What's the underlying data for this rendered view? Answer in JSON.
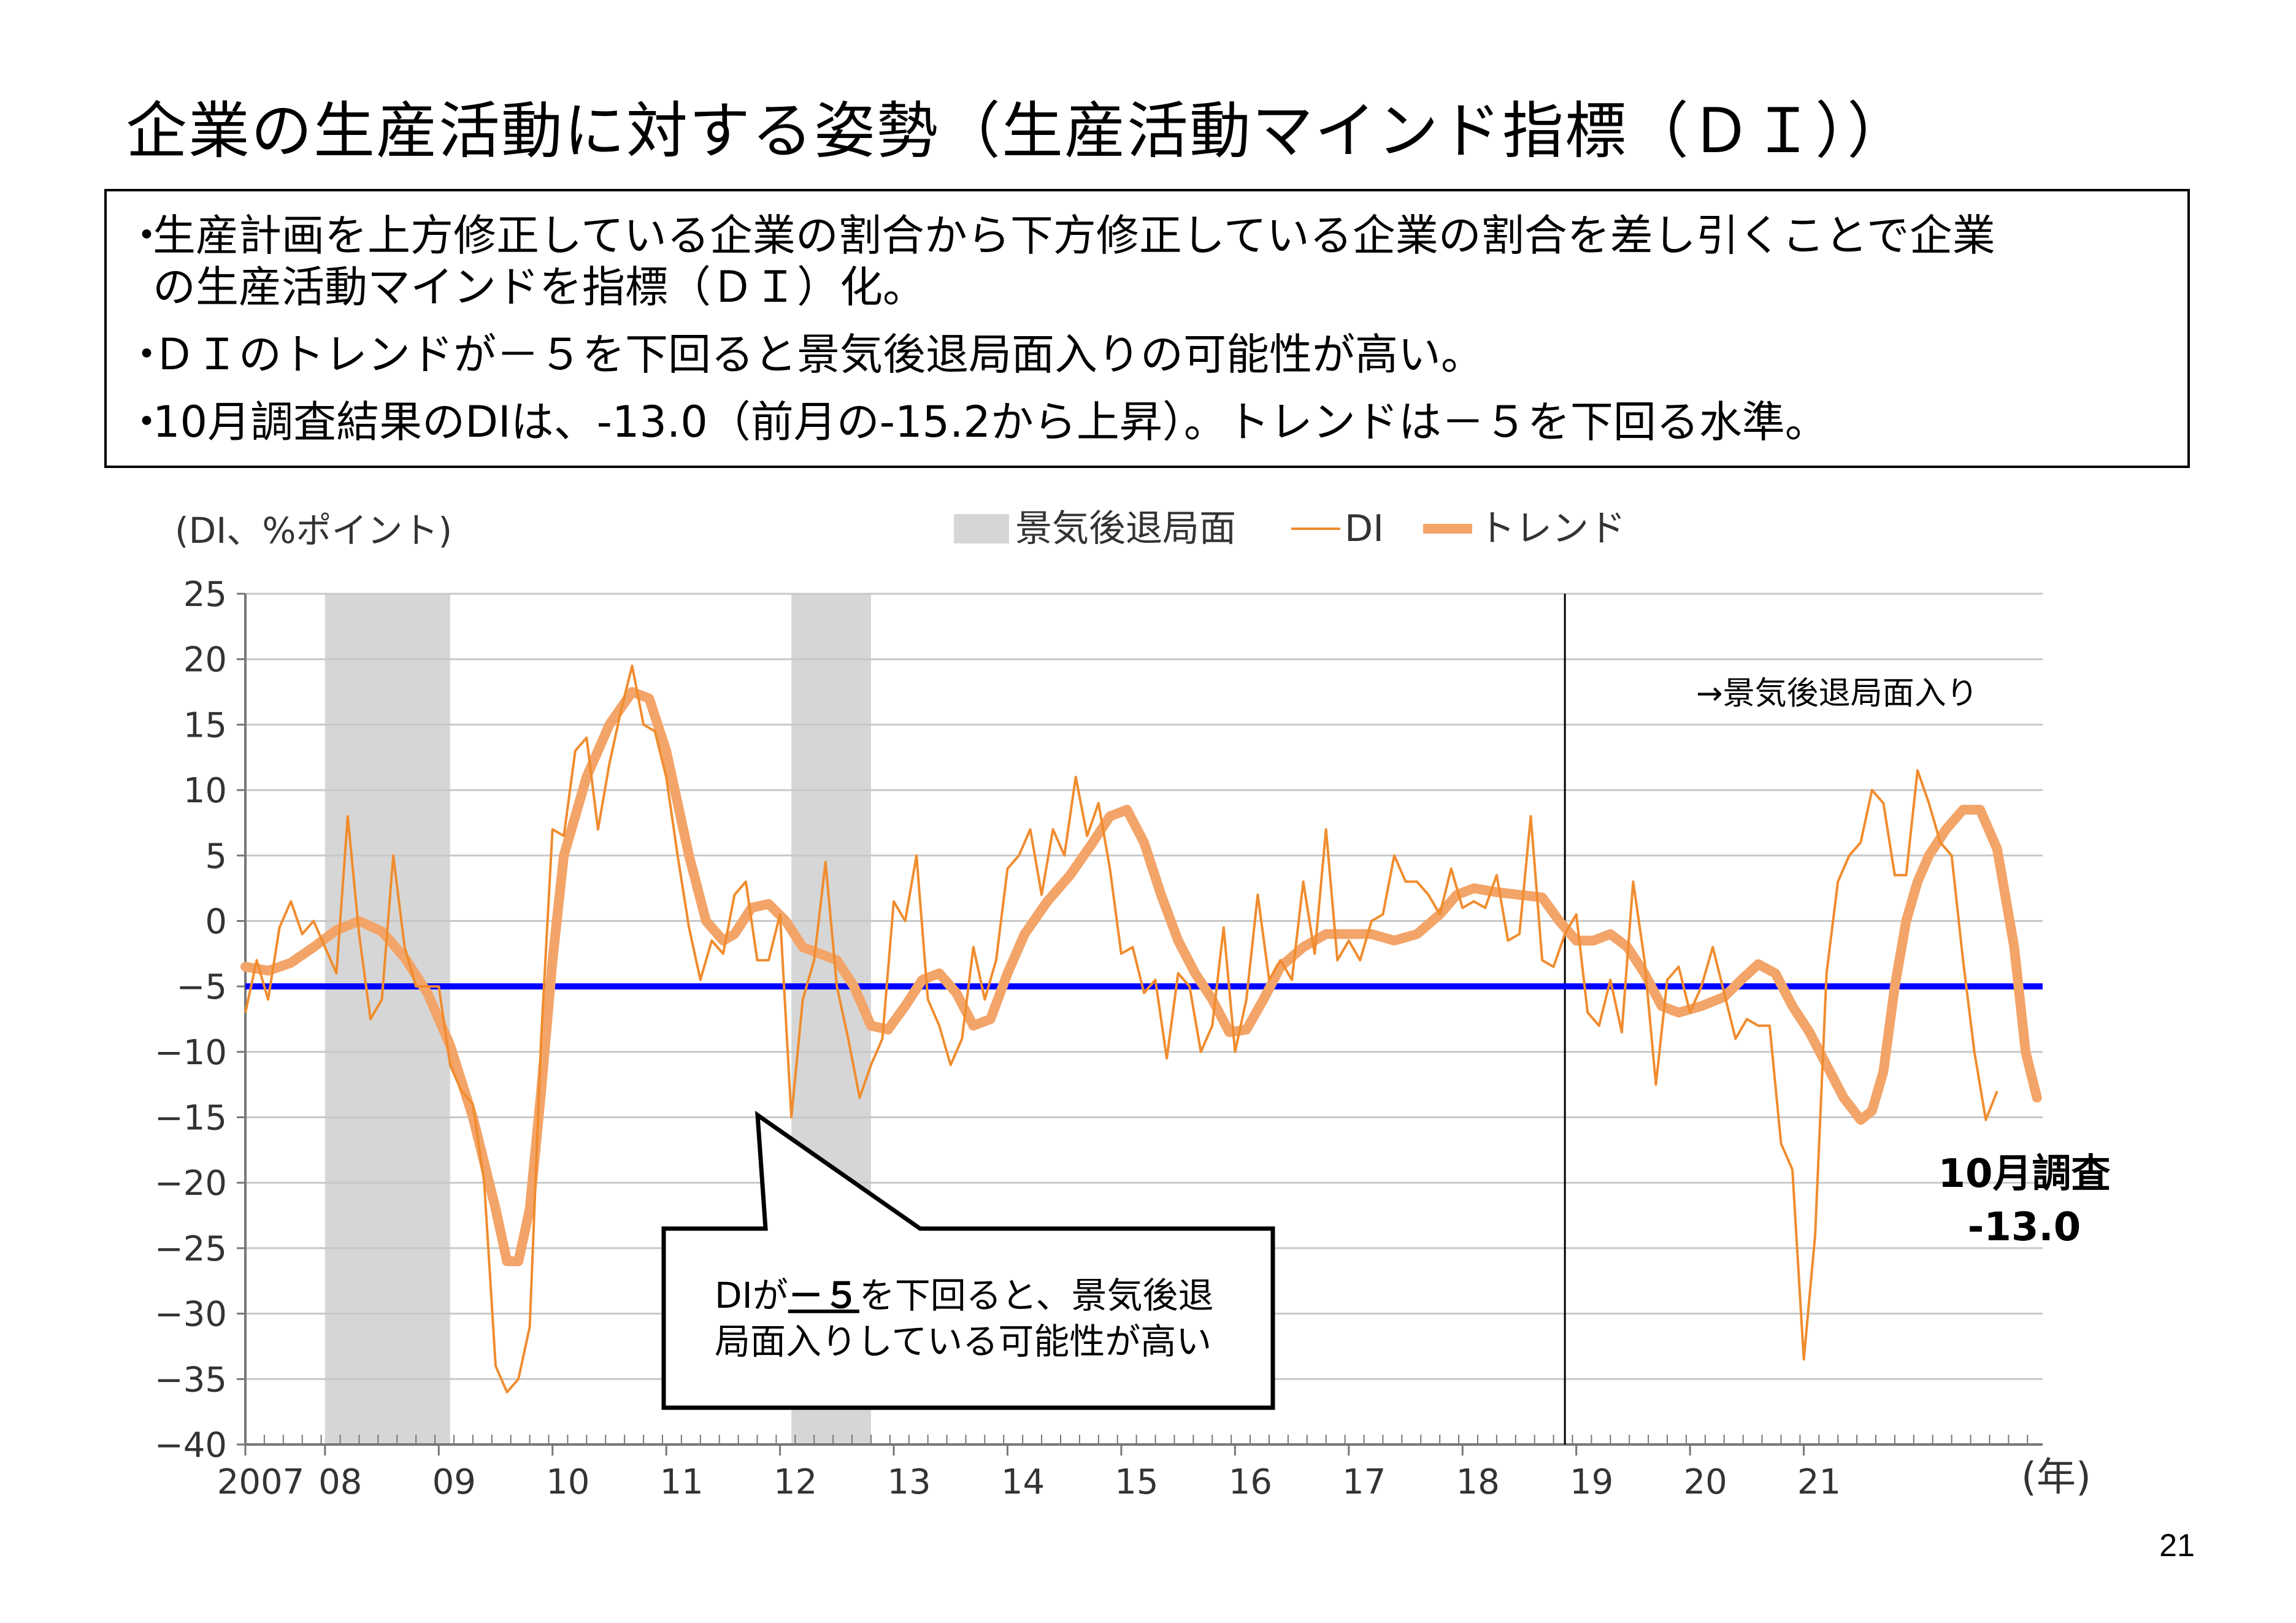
{
  "slide": {
    "title": "企業の生産活動に対する姿勢（生産活動マインド指標（ＤＩ））",
    "bullets": [
      {
        "line1": "生産計画を上方修正している企業の割合から下方修正している企業の割合を差し引くことで企業",
        "line2": "の生産活動マインドを指標（ＤＩ）化。"
      },
      {
        "line1": "ＤＩのトレンドが－５を下回ると景気後退局面入りの可能性が高い。",
        "line2": ""
      },
      {
        "line1": "10月調査結果のDIは、-13.0（前月の-15.2から上昇）。トレンドは－５を下回る水準。",
        "line2": ""
      }
    ],
    "bullet_marker": "・",
    "page_number": "21"
  },
  "chart_data": {
    "type": "line",
    "unit_label": "(DI、%ポイント)",
    "xlabel": "(年)",
    "ylim": [
      -40,
      25
    ],
    "y_ticks": [
      "25",
      "20",
      "15",
      "10",
      "5",
      "0",
      "−5",
      "−10",
      "−15",
      "−20",
      "−25",
      "−30",
      "−35",
      "−40"
    ],
    "x_ticks": [
      {
        "label": "2007",
        "year": 2007.3
      },
      {
        "label": "08",
        "year": 2008.0
      },
      {
        "label": "09",
        "year": 2009.0
      },
      {
        "label": "10",
        "year": 2010.0
      },
      {
        "label": "11",
        "year": 2011.0
      },
      {
        "label": "12",
        "year": 2012.0
      },
      {
        "label": "13",
        "year": 2013.0
      },
      {
        "label": "14",
        "year": 2014.0
      },
      {
        "label": "15",
        "year": 2015.0
      },
      {
        "label": "16",
        "year": 2016.0
      },
      {
        "label": "17",
        "year": 2017.0
      },
      {
        "label": "18",
        "year": 2018.0
      },
      {
        "label": "19",
        "year": 2019.0
      },
      {
        "label": "20",
        "year": 2020.0
      },
      {
        "label": "21",
        "year": 2021.0
      }
    ],
    "legend": {
      "recession": "景気後退局面",
      "di": "DI",
      "trend": "トレンド"
    },
    "colors": {
      "di": "#f08c2e",
      "trend": "#f3a468",
      "threshold": "#0000ff",
      "recession": "#d6d6d6"
    },
    "recession_periods": [
      [
        2008.0,
        2009.1
      ],
      [
        2012.1,
        2012.8
      ]
    ],
    "threshold": -5,
    "recession_entry": {
      "year": 2018.9,
      "label": "→景気後退局面入り"
    },
    "callout": {
      "line1_prefix": "DIが",
      "line1_emph": "－５",
      "line1_suffix": "を下回ると、景気後退",
      "line2": "局面入りしている可能性が高い"
    },
    "latest_label": {
      "line1": "10月調査",
      "line2": "-13.0"
    },
    "series": [
      {
        "name": "DI",
        "points": [
          [
            2007.3,
            -7
          ],
          [
            2007.4,
            -3
          ],
          [
            2007.5,
            -6
          ],
          [
            2007.6,
            -0.5
          ],
          [
            2007.7,
            1.5
          ],
          [
            2007.8,
            -1
          ],
          [
            2007.9,
            0
          ],
          [
            2008.0,
            -2
          ],
          [
            2008.1,
            -4
          ],
          [
            2008.2,
            8
          ],
          [
            2008.3,
            -1
          ],
          [
            2008.4,
            -7.5
          ],
          [
            2008.5,
            -6
          ],
          [
            2008.6,
            5
          ],
          [
            2008.7,
            -2
          ],
          [
            2008.8,
            -5
          ],
          [
            2008.9,
            -5
          ],
          [
            2009.0,
            -5
          ],
          [
            2009.1,
            -11
          ],
          [
            2009.2,
            -13
          ],
          [
            2009.3,
            -14
          ],
          [
            2009.4,
            -20
          ],
          [
            2009.5,
            -34
          ],
          [
            2009.6,
            -36
          ],
          [
            2009.7,
            -35
          ],
          [
            2009.8,
            -31
          ],
          [
            2009.9,
            -9
          ],
          [
            2010.0,
            7
          ],
          [
            2010.1,
            6.5
          ],
          [
            2010.2,
            13
          ],
          [
            2010.3,
            14
          ],
          [
            2010.4,
            7
          ],
          [
            2010.5,
            12
          ],
          [
            2010.6,
            16
          ],
          [
            2010.7,
            19.5
          ],
          [
            2010.8,
            15
          ],
          [
            2010.9,
            14.5
          ],
          [
            2011.0,
            11
          ],
          [
            2011.1,
            5
          ],
          [
            2011.2,
            -0.5
          ],
          [
            2011.3,
            -4.5
          ],
          [
            2011.4,
            -1.5
          ],
          [
            2011.5,
            -2.5
          ],
          [
            2011.6,
            2
          ],
          [
            2011.7,
            3
          ],
          [
            2011.8,
            -3
          ],
          [
            2011.9,
            -3
          ],
          [
            2012.0,
            0.5
          ],
          [
            2012.1,
            -15
          ],
          [
            2012.2,
            -6
          ],
          [
            2012.3,
            -3
          ],
          [
            2012.4,
            4.5
          ],
          [
            2012.5,
            -5
          ],
          [
            2012.6,
            -9
          ],
          [
            2012.7,
            -13.5
          ],
          [
            2012.8,
            -11
          ],
          [
            2012.9,
            -9
          ],
          [
            2013.0,
            1.5
          ],
          [
            2013.1,
            0
          ],
          [
            2013.2,
            5
          ],
          [
            2013.3,
            -6
          ],
          [
            2013.4,
            -8
          ],
          [
            2013.5,
            -11
          ],
          [
            2013.6,
            -9
          ],
          [
            2013.7,
            -2
          ],
          [
            2013.8,
            -6
          ],
          [
            2013.9,
            -3
          ],
          [
            2014.0,
            4
          ],
          [
            2014.1,
            5
          ],
          [
            2014.2,
            7
          ],
          [
            2014.3,
            2
          ],
          [
            2014.4,
            7
          ],
          [
            2014.5,
            5
          ],
          [
            2014.6,
            11
          ],
          [
            2014.7,
            6.5
          ],
          [
            2014.8,
            9
          ],
          [
            2014.9,
            4
          ],
          [
            2015.0,
            -2.5
          ],
          [
            2015.1,
            -2
          ],
          [
            2015.2,
            -5.5
          ],
          [
            2015.3,
            -4.5
          ],
          [
            2015.4,
            -10.5
          ],
          [
            2015.5,
            -4
          ],
          [
            2015.6,
            -5
          ],
          [
            2015.7,
            -10
          ],
          [
            2015.8,
            -8
          ],
          [
            2015.9,
            -0.5
          ],
          [
            2016.0,
            -10
          ],
          [
            2016.1,
            -6
          ],
          [
            2016.2,
            2
          ],
          [
            2016.3,
            -4.5
          ],
          [
            2016.4,
            -3
          ],
          [
            2016.5,
            -4.5
          ],
          [
            2016.6,
            3
          ],
          [
            2016.7,
            -2.5
          ],
          [
            2016.8,
            7
          ],
          [
            2016.9,
            -3
          ],
          [
            2017.0,
            -1.5
          ],
          [
            2017.1,
            -3
          ],
          [
            2017.2,
            0
          ],
          [
            2017.3,
            0.5
          ],
          [
            2017.4,
            5
          ],
          [
            2017.5,
            3
          ],
          [
            2017.6,
            3
          ],
          [
            2017.7,
            2
          ],
          [
            2017.8,
            0.5
          ],
          [
            2017.9,
            4
          ],
          [
            2018.0,
            1
          ],
          [
            2018.1,
            1.5
          ],
          [
            2018.2,
            1
          ],
          [
            2018.3,
            3.5
          ],
          [
            2018.4,
            -1.5
          ],
          [
            2018.5,
            -1
          ],
          [
            2018.6,
            8
          ],
          [
            2018.7,
            -3
          ],
          [
            2018.8,
            -3.5
          ],
          [
            2018.9,
            -1
          ],
          [
            2019.0,
            0.5
          ],
          [
            2019.1,
            -7
          ],
          [
            2019.2,
            -8
          ],
          [
            2019.3,
            -4.5
          ],
          [
            2019.4,
            -8.5
          ],
          [
            2019.5,
            3
          ],
          [
            2019.6,
            -3
          ],
          [
            2019.7,
            -12.5
          ],
          [
            2019.8,
            -4.5
          ],
          [
            2019.9,
            -3.5
          ],
          [
            2020.0,
            -7
          ],
          [
            2020.1,
            -5
          ],
          [
            2020.2,
            -2
          ],
          [
            2020.3,
            -5.5
          ],
          [
            2020.4,
            -9
          ],
          [
            2020.5,
            -7.5
          ],
          [
            2020.6,
            -8
          ],
          [
            2020.7,
            -8
          ],
          [
            2020.8,
            -17
          ],
          [
            2020.9,
            -19
          ],
          [
            2021.0,
            -33.5
          ],
          [
            2021.1,
            -24
          ],
          [
            2021.2,
            -4
          ],
          [
            2021.3,
            3
          ],
          [
            2021.4,
            5
          ],
          [
            2021.5,
            6
          ],
          [
            2021.6,
            10
          ],
          [
            2021.7,
            9
          ],
          [
            2021.8,
            3.5
          ],
          [
            2021.9,
            3.5
          ],
          [
            2022.0,
            11.5
          ],
          [
            2022.1,
            9
          ],
          [
            2022.2,
            6
          ],
          [
            2022.3,
            5
          ],
          [
            2022.4,
            -3
          ],
          [
            2022.5,
            -10
          ],
          [
            2022.6,
            -15.2
          ],
          [
            2022.7,
            -13
          ]
        ]
      },
      {
        "name": "トレンド",
        "points": [
          [
            2007.3,
            -3.5
          ],
          [
            2007.5,
            -3.8
          ],
          [
            2007.7,
            -3.2
          ],
          [
            2007.9,
            -2
          ],
          [
            2008.1,
            -0.7
          ],
          [
            2008.3,
            0
          ],
          [
            2008.5,
            -0.8
          ],
          [
            2008.7,
            -2.8
          ],
          [
            2008.9,
            -5.5
          ],
          [
            2009.1,
            -9.5
          ],
          [
            2009.3,
            -15
          ],
          [
            2009.5,
            -22
          ],
          [
            2009.6,
            -26
          ],
          [
            2009.7,
            -26
          ],
          [
            2009.8,
            -22
          ],
          [
            2009.9,
            -13
          ],
          [
            2010.0,
            -3
          ],
          [
            2010.1,
            5
          ],
          [
            2010.3,
            11
          ],
          [
            2010.5,
            15
          ],
          [
            2010.7,
            17.5
          ],
          [
            2010.85,
            17
          ],
          [
            2011.0,
            13
          ],
          [
            2011.2,
            5
          ],
          [
            2011.35,
            0
          ],
          [
            2011.5,
            -1.5
          ],
          [
            2011.6,
            -1
          ],
          [
            2011.75,
            1
          ],
          [
            2011.9,
            1.3
          ],
          [
            2012.05,
            0
          ],
          [
            2012.2,
            -2
          ],
          [
            2012.35,
            -2.5
          ],
          [
            2012.5,
            -3
          ],
          [
            2012.65,
            -5
          ],
          [
            2012.8,
            -8
          ],
          [
            2012.95,
            -8.3
          ],
          [
            2013.1,
            -6.5
          ],
          [
            2013.25,
            -4.5
          ],
          [
            2013.4,
            -4
          ],
          [
            2013.55,
            -5.5
          ],
          [
            2013.7,
            -8
          ],
          [
            2013.85,
            -7.5
          ],
          [
            2014.0,
            -4
          ],
          [
            2014.15,
            -1
          ],
          [
            2014.35,
            1.5
          ],
          [
            2014.55,
            3.5
          ],
          [
            2014.75,
            6
          ],
          [
            2014.9,
            8
          ],
          [
            2015.05,
            8.5
          ],
          [
            2015.2,
            6
          ],
          [
            2015.35,
            2
          ],
          [
            2015.5,
            -1.5
          ],
          [
            2015.65,
            -4
          ],
          [
            2015.8,
            -6
          ],
          [
            2015.95,
            -8.5
          ],
          [
            2016.1,
            -8.3
          ],
          [
            2016.25,
            -6
          ],
          [
            2016.4,
            -3.5
          ],
          [
            2016.6,
            -2
          ],
          [
            2016.8,
            -1
          ],
          [
            2017.0,
            -1
          ],
          [
            2017.2,
            -1
          ],
          [
            2017.4,
            -1.5
          ],
          [
            2017.6,
            -1
          ],
          [
            2017.8,
            0.5
          ],
          [
            2017.95,
            2
          ],
          [
            2018.1,
            2.5
          ],
          [
            2018.3,
            2.2
          ],
          [
            2018.5,
            2
          ],
          [
            2018.7,
            1.8
          ],
          [
            2018.85,
            0
          ],
          [
            2019.0,
            -1.5
          ],
          [
            2019.15,
            -1.5
          ],
          [
            2019.3,
            -1
          ],
          [
            2019.45,
            -2
          ],
          [
            2019.6,
            -4
          ],
          [
            2019.75,
            -6.5
          ],
          [
            2019.9,
            -7
          ],
          [
            2020.1,
            -6.5
          ],
          [
            2020.3,
            -5.8
          ],
          [
            2020.45,
            -4.5
          ],
          [
            2020.6,
            -3.3
          ],
          [
            2020.75,
            -4
          ],
          [
            2020.9,
            -6.5
          ],
          [
            2021.05,
            -8.5
          ],
          [
            2021.2,
            -11
          ],
          [
            2021.35,
            -13.5
          ],
          [
            2021.5,
            -15.2
          ],
          [
            2021.6,
            -14.5
          ],
          [
            2021.7,
            -11.5
          ],
          [
            2021.8,
            -5
          ],
          [
            2021.9,
            0
          ],
          [
            2022.0,
            3
          ],
          [
            2022.1,
            5
          ],
          [
            2022.25,
            7
          ],
          [
            2022.4,
            8.5
          ],
          [
            2022.55,
            8.5
          ],
          [
            2022.7,
            5.5
          ],
          [
            2022.85,
            -2
          ],
          [
            2022.95,
            -10
          ],
          [
            2023.05,
            -13.5
          ]
        ]
      }
    ]
  }
}
